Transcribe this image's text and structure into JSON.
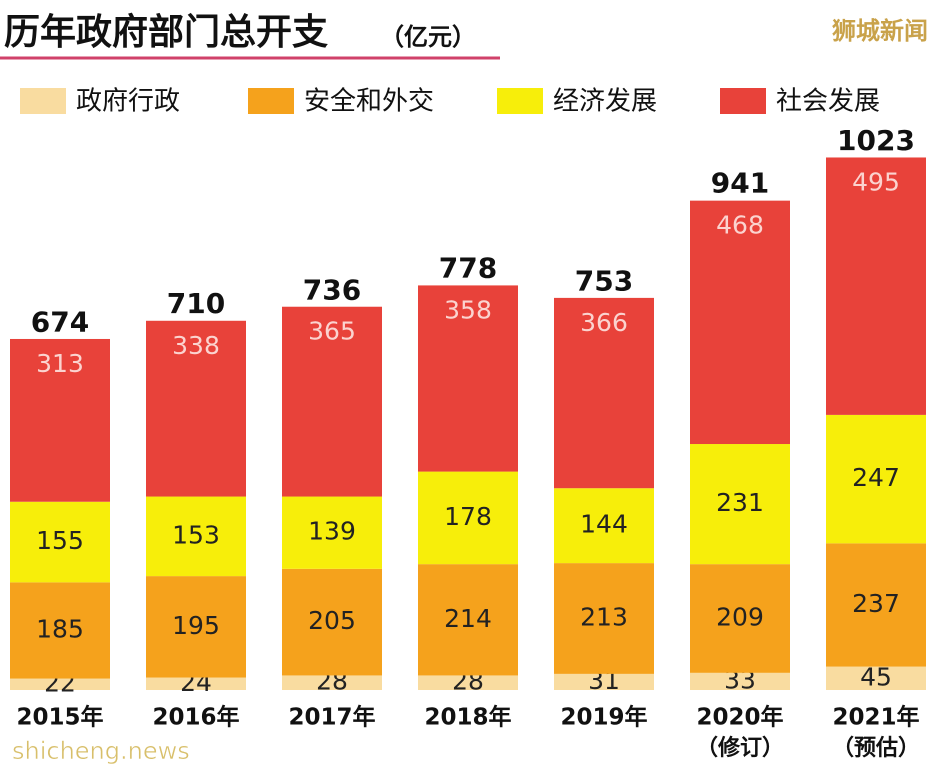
{
  "chart_data": {
    "type": "stacked_bar",
    "title": "历年政府部门总开支",
    "subtitle": "（亿元）",
    "source_mark": "狮城新闻",
    "watermark": "shicheng.news",
    "categories": [
      "2015年",
      "2016年",
      "2017年",
      "2018年",
      "2019年",
      "2020年",
      "2021年"
    ],
    "category_notes": [
      null,
      null,
      null,
      null,
      null,
      "（修订）",
      "（预估）"
    ],
    "totals": [
      674,
      710,
      736,
      778,
      753,
      941,
      1023
    ],
    "series": [
      {
        "name": "政府行政",
        "color": "#f9dca0",
        "values": [
          22,
          24,
          28,
          28,
          31,
          33,
          45
        ]
      },
      {
        "name": "安全和外交",
        "color": "#f5a21c",
        "values": [
          185,
          195,
          205,
          214,
          213,
          209,
          237
        ]
      },
      {
        "name": "经济发展",
        "color": "#f7ee0a",
        "values": [
          155,
          153,
          139,
          178,
          144,
          231,
          247
        ]
      },
      {
        "name": "社会发展",
        "color": "#e8423a",
        "values": [
          313,
          338,
          365,
          358,
          366,
          468,
          495
        ]
      }
    ]
  }
}
